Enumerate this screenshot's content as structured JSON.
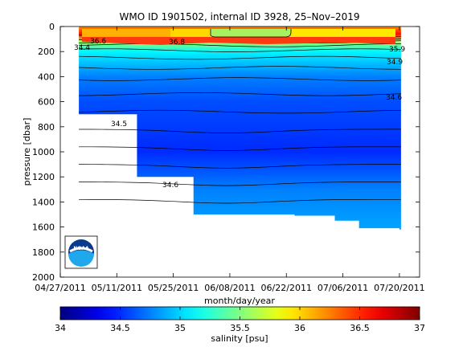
{
  "chart_data": {
    "type": "heatmap",
    "title": "WMO ID 1901502, internal ID 3928, 25–Nov–2019",
    "xlabel": "month/day/year",
    "ylabel": "pressure [dbar]",
    "x_ticks": [
      "04/27/2011",
      "05/11/2011",
      "05/25/2011",
      "06/08/2011",
      "06/22/2011",
      "07/06/2011",
      "07/20/2011"
    ],
    "y_ticks": [
      0,
      200,
      400,
      600,
      800,
      1000,
      1200,
      1400,
      1600,
      1800,
      2000
    ],
    "ylim": [
      2000,
      0
    ],
    "xlim": [
      "04/27/2011",
      "07/25/2011"
    ],
    "colorbar": {
      "label": "salinity [psu]",
      "ticks": [
        34,
        34.5,
        35,
        35.5,
        36,
        36.5,
        37
      ],
      "range": [
        34,
        37
      ],
      "colormap": "jet"
    },
    "profile_depth_limits": [
      {
        "date": "05/02/2011",
        "max_pressure": 700
      },
      {
        "date": "05/16/2011",
        "max_pressure": 1200
      },
      {
        "date": "05/30/2011",
        "max_pressure": 1500
      },
      {
        "date": "06/24/2011",
        "max_pressure": 1510
      },
      {
        "date": "07/04/2011",
        "max_pressure": 1550
      },
      {
        "date": "07/10/2011",
        "max_pressure": 1610
      },
      {
        "date": "07/20/2011",
        "max_pressure": 1620
      }
    ],
    "salinity_profile": [
      {
        "pressure": 0,
        "salinity": 36.2
      },
      {
        "pressure": 60,
        "salinity": 36.6
      },
      {
        "pressure": 120,
        "salinity": 35.6
      },
      {
        "pressure": 200,
        "salinity": 35.1
      },
      {
        "pressure": 400,
        "salinity": 34.75
      },
      {
        "pressure": 600,
        "salinity": 34.6
      },
      {
        "pressure": 1000,
        "salinity": 34.5
      },
      {
        "pressure": 1300,
        "salinity": 34.75
      },
      {
        "pressure": 1600,
        "salinity": 34.85
      }
    ],
    "contour_labels": [
      "34.4",
      "36.6",
      "36.8",
      "35.9",
      "34.9",
      "34.6",
      "34.5",
      "34.6"
    ],
    "logo_text": "NOAA"
  }
}
